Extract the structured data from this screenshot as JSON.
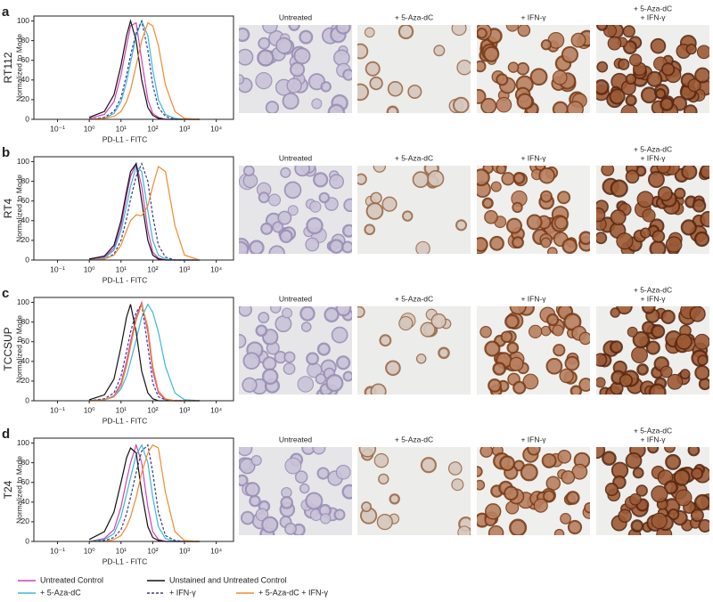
{
  "chart_data": [
    {
      "type": "line",
      "panel": "a",
      "cell_line": "RT112",
      "xlabel": "PD-L1 - FITC",
      "ylabel": "Normalized to Mode",
      "xscale": "log",
      "xlim": [
        0.018,
        35000
      ],
      "ylim": [
        0,
        105
      ],
      "xticks": [
        {
          "value": 0.1,
          "label": "10⁻¹"
        },
        {
          "value": 1,
          "label": "10⁰"
        },
        {
          "value": 10,
          "label": "10¹"
        },
        {
          "value": 100,
          "label": "10²"
        },
        {
          "value": 1000,
          "label": "10³"
        },
        {
          "value": 10000,
          "label": "10⁴"
        }
      ],
      "yticks": [
        0,
        20,
        40,
        60,
        80,
        100
      ],
      "columns": [
        "Untreated",
        "+ 5-Aza-dC",
        "+ IFN-γ",
        [
          "+ 5-Aza-dC",
          "+ IFN-γ"
        ]
      ],
      "x": [
        1,
        3,
        6,
        10,
        15,
        20,
        30,
        45,
        70,
        100,
        150,
        250,
        500,
        1000,
        3000
      ],
      "series": [
        {
          "name": "Untreated Control",
          "color": "#d63fb3",
          "dash": false,
          "values": [
            1,
            5,
            18,
            45,
            75,
            95,
            98,
            60,
            20,
            6,
            2,
            0,
            0,
            0,
            0
          ]
        },
        {
          "name": "+ 5-Aza-dC",
          "color": "#3bb8d8",
          "dash": false,
          "values": [
            0,
            1,
            6,
            18,
            38,
            58,
            85,
            100,
            85,
            50,
            20,
            5,
            1,
            0,
            0
          ]
        },
        {
          "name": "Unstained and Untreated Control",
          "color": "#111111",
          "dash": false,
          "values": [
            2,
            8,
            25,
            55,
            85,
            100,
            80,
            40,
            12,
            4,
            1,
            0,
            0,
            0,
            0
          ]
        },
        {
          "name": "+ IFN-γ",
          "color": "#3a3a8a",
          "dash": true,
          "values": [
            0,
            2,
            8,
            22,
            45,
            65,
            88,
            100,
            70,
            35,
            12,
            3,
            0,
            0,
            0
          ]
        },
        {
          "name": "+ 5-Aza-dC + IFN-γ",
          "color": "#f08a30",
          "dash": false,
          "values": [
            0,
            1,
            3,
            8,
            18,
            30,
            55,
            80,
            98,
            95,
            75,
            35,
            8,
            1,
            0
          ]
        }
      ]
    },
    {
      "type": "line",
      "panel": "b",
      "cell_line": "RT4",
      "xlabel": "PD-L1 - FITC",
      "ylabel": "Normalized to Mode",
      "xscale": "log",
      "xlim": [
        0.018,
        35000
      ],
      "ylim": [
        0,
        105
      ],
      "xticks": [
        {
          "value": 0.1,
          "label": "10⁻¹"
        },
        {
          "value": 1,
          "label": "10⁰"
        },
        {
          "value": 10,
          "label": "10¹"
        },
        {
          "value": 100,
          "label": "10²"
        },
        {
          "value": 1000,
          "label": "10³"
        },
        {
          "value": 10000,
          "label": "10⁴"
        }
      ],
      "yticks": [
        0,
        20,
        40,
        60,
        80,
        100
      ],
      "columns": [
        "Untreated",
        "+ 5-Aza-dC",
        "+ IFN-γ",
        [
          "+ 5-Aza-dC",
          "+ IFN-γ"
        ]
      ],
      "x": [
        1,
        3,
        6,
        10,
        15,
        20,
        30,
        45,
        70,
        100,
        150,
        250,
        500,
        1000,
        3000
      ],
      "series": [
        {
          "name": "Untreated Control",
          "color": "#d63fb3",
          "dash": false,
          "values": [
            0,
            3,
            12,
            35,
            65,
            85,
            98,
            75,
            30,
            8,
            2,
            0,
            0,
            0,
            0
          ]
        },
        {
          "name": "+ 5-Aza-dC",
          "color": "#3bb8d8",
          "dash": false,
          "values": [
            0,
            2,
            10,
            30,
            55,
            75,
            95,
            90,
            50,
            20,
            5,
            1,
            0,
            0,
            0
          ]
        },
        {
          "name": "Unstained and Untreated Control",
          "color": "#111111",
          "dash": false,
          "values": [
            1,
            4,
            15,
            40,
            70,
            90,
            98,
            60,
            20,
            5,
            1,
            0,
            0,
            0,
            0
          ]
        },
        {
          "name": "+ IFN-γ",
          "color": "#3a3a8a",
          "dash": true,
          "values": [
            0,
            1,
            6,
            20,
            42,
            62,
            85,
            98,
            80,
            45,
            15,
            3,
            0,
            0,
            0
          ]
        },
        {
          "name": "+ 5-Aza-dC + IFN-γ",
          "color": "#f08a30",
          "dash": false,
          "values": [
            0,
            1,
            5,
            15,
            30,
            40,
            46,
            45,
            55,
            75,
            95,
            90,
            35,
            5,
            0
          ]
        }
      ]
    },
    {
      "type": "line",
      "panel": "c",
      "cell_line": "TCCSUP",
      "xlabel": "PD-L1 - FITC",
      "ylabel": "Normalized to Mode",
      "xscale": "log",
      "xlim": [
        0.018,
        35000
      ],
      "ylim": [
        0,
        105
      ],
      "xticks": [
        {
          "value": 0.1,
          "label": "10⁻¹"
        },
        {
          "value": 1,
          "label": "10⁰"
        },
        {
          "value": 10,
          "label": "10¹"
        },
        {
          "value": 100,
          "label": "10²"
        },
        {
          "value": 1000,
          "label": "10³"
        },
        {
          "value": 10000,
          "label": "10⁴"
        }
      ],
      "yticks": [
        0,
        20,
        40,
        60,
        80,
        100
      ],
      "columns": [
        "Untreated",
        "+ 5-Aza-dC",
        "+ IFN-γ",
        [
          "+ 5-Aza-dC",
          "+ IFN-γ"
        ]
      ],
      "x": [
        1,
        3,
        6,
        10,
        15,
        20,
        30,
        45,
        70,
        100,
        150,
        250,
        500,
        1000,
        3000
      ],
      "series": [
        {
          "name": "Untreated Control",
          "color": "#d63fb3",
          "dash": false,
          "values": [
            0,
            1,
            5,
            18,
            40,
            60,
            85,
            100,
            70,
            30,
            8,
            1,
            0,
            0,
            0
          ]
        },
        {
          "name": "+ 5-Aza-dC",
          "color": "#3bb8d8",
          "dash": false,
          "values": [
            0,
            1,
            4,
            12,
            25,
            40,
            62,
            85,
            98,
            90,
            70,
            35,
            8,
            1,
            0
          ]
        },
        {
          "name": "Unstained and Untreated Control",
          "color": "#111111",
          "dash": false,
          "values": [
            1,
            6,
            22,
            55,
            85,
            98,
            70,
            30,
            8,
            2,
            0,
            0,
            0,
            0,
            0
          ]
        },
        {
          "name": "+ IFN-γ",
          "color": "#3a3a8a",
          "dash": true,
          "values": [
            0,
            2,
            8,
            25,
            50,
            70,
            90,
            98,
            55,
            18,
            4,
            1,
            0,
            0,
            0
          ]
        },
        {
          "name": "+ 5-Aza-dC + IFN-γ",
          "color": "#f08a30",
          "dash": false,
          "values": [
            0,
            1,
            4,
            15,
            35,
            55,
            82,
            98,
            75,
            35,
            10,
            2,
            0,
            0,
            0
          ]
        }
      ]
    },
    {
      "type": "line",
      "panel": "d",
      "cell_line": "T24",
      "xlabel": "PD-L1 - FITC",
      "ylabel": "Normalized to Mode",
      "xscale": "log",
      "xlim": [
        0.018,
        35000
      ],
      "ylim": [
        0,
        105
      ],
      "xticks": [
        {
          "value": 0.1,
          "label": "10⁻¹"
        },
        {
          "value": 1,
          "label": "10⁰"
        },
        {
          "value": 10,
          "label": "10¹"
        },
        {
          "value": 100,
          "label": "10²"
        },
        {
          "value": 1000,
          "label": "10³"
        },
        {
          "value": 10000,
          "label": "10⁴"
        }
      ],
      "yticks": [
        0,
        20,
        40,
        60,
        80,
        100
      ],
      "columns": [
        "Untreated",
        "+ 5-Aza-dC",
        "+ IFN-γ",
        [
          "+ 5-Aza-dC",
          "+ IFN-γ"
        ]
      ],
      "x": [
        1,
        3,
        6,
        10,
        15,
        20,
        30,
        45,
        70,
        100,
        150,
        250,
        500,
        1000,
        3000
      ],
      "series": [
        {
          "name": "Untreated Control",
          "color": "#d63fb3",
          "dash": false,
          "values": [
            0,
            3,
            12,
            35,
            62,
            80,
            98,
            80,
            35,
            10,
            2,
            0,
            0,
            0,
            0
          ]
        },
        {
          "name": "+ 5-Aza-dC",
          "color": "#3bb8d8",
          "dash": false,
          "values": [
            0,
            2,
            8,
            25,
            48,
            65,
            88,
            98,
            80,
            45,
            15,
            3,
            0,
            0,
            0
          ]
        },
        {
          "name": "Unstained and Untreated Control",
          "color": "#111111",
          "dash": false,
          "values": [
            2,
            10,
            30,
            60,
            85,
            95,
            90,
            50,
            15,
            4,
            1,
            0,
            0,
            0,
            0
          ]
        },
        {
          "name": "+ IFN-γ",
          "color": "#3a3a8a",
          "dash": true,
          "values": [
            0,
            1,
            4,
            12,
            28,
            45,
            70,
            92,
            98,
            70,
            30,
            6,
            1,
            0,
            0
          ]
        },
        {
          "name": "+ 5-Aza-dC + IFN-γ",
          "color": "#f08a30",
          "dash": false,
          "values": [
            0,
            0,
            2,
            6,
            15,
            25,
            45,
            70,
            90,
            98,
            95,
            50,
            10,
            1,
            0
          ]
        }
      ]
    }
  ]
}
